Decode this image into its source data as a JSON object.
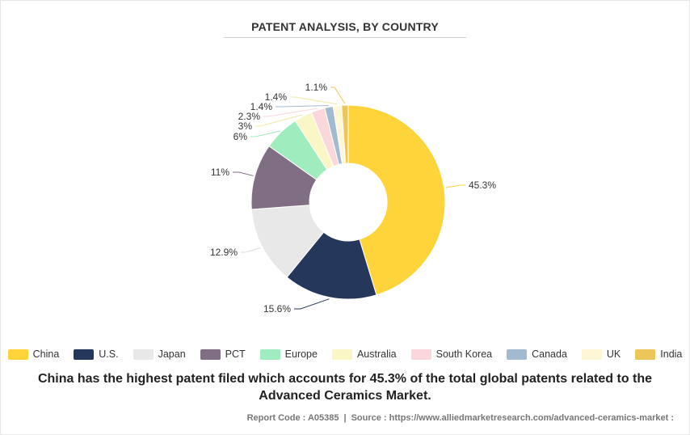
{
  "chart_data": {
    "type": "pie",
    "title": "PATENT ANALYSIS, BY COUNTRY",
    "categories": [
      "China",
      "U.S.",
      "Japan",
      "PCT",
      "Europe",
      "Australia",
      "South Korea",
      "Canada",
      "UK",
      "India"
    ],
    "values": [
      45.3,
      15.6,
      12.9,
      11,
      6,
      3,
      2.3,
      1.4,
      1.4,
      1.1
    ],
    "labels": [
      "45.3%",
      "15.6%",
      "12.9%",
      "11%",
      "6%",
      "3%",
      "2.3%",
      "1.4%",
      "1.4%",
      "1.1%"
    ],
    "colors": [
      "#FFD43B",
      "#25375A",
      "#E8E8E8",
      "#7F6E84",
      "#9FEDBE",
      "#FBF6C5",
      "#F9D7DA",
      "#A2BAD0",
      "#FEF6D5",
      "#EDC65B"
    ],
    "legend_position": "bottom",
    "donut": true
  },
  "caption": "China has the highest patent filed which accounts for 45.3% of the total global patents related to the Advanced Ceramics Market.",
  "footer": {
    "report_label": "Report Code : A05385",
    "separator": "|",
    "source_label": "Source : https://www.alliedmarketresearch.com/advanced-ceramics-market :"
  }
}
